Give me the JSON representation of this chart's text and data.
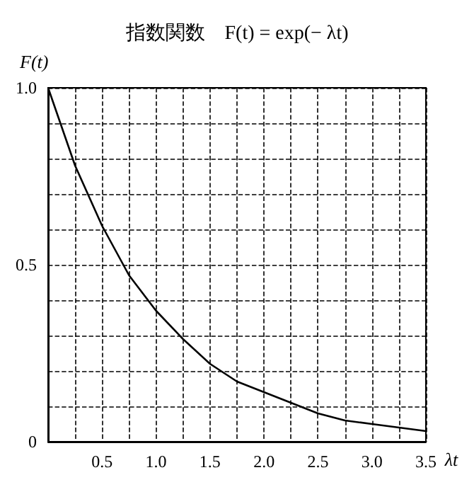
{
  "chart_data": {
    "type": "line",
    "title": "指数関数　F(t) = exp(− λt)",
    "xlabel": "λt",
    "ylabel": "F(t)",
    "x": [
      0,
      0.25,
      0.5,
      0.75,
      1,
      1.25,
      1.5,
      1.75,
      2,
      2.25,
      2.5,
      2.75,
      3,
      3.25,
      3.5
    ],
    "values": [
      1,
      0.78,
      0.61,
      0.47,
      0.37,
      0.29,
      0.22,
      0.17,
      0.14,
      0.11,
      0.08,
      0.06,
      0.05,
      0.04,
      0.03
    ],
    "color": "#000000",
    "marker": "none",
    "line_style": "solid",
    "grid": true,
    "xlim": [
      0,
      3.5
    ],
    "ylim": [
      0,
      1
    ],
    "xticks": [
      {
        "value": 0,
        "label": null
      },
      {
        "value": 0.25,
        "label": null
      },
      0.5,
      {
        "value": 0.75,
        "label": null
      },
      {
        "value": 1,
        "label": "1.0"
      },
      {
        "value": 1.25,
        "label": null
      },
      1.5,
      {
        "value": 1.75,
        "label": null
      },
      {
        "value": 2,
        "label": "2.0"
      },
      {
        "value": 2.25,
        "label": null
      },
      2.5,
      {
        "value": 2.75,
        "label": null
      },
      {
        "value": 3,
        "label": "3.0"
      },
      {
        "value": 3.25,
        "label": null
      },
      3.5
    ],
    "yticks": [
      0,
      {
        "value": 0.1,
        "label": null
      },
      {
        "value": 0.2,
        "label": null
      },
      {
        "value": 0.3,
        "label": null
      },
      {
        "value": 0.4,
        "label": null
      },
      0.5,
      {
        "value": 0.6,
        "label": null
      },
      {
        "value": 0.7,
        "label": null
      },
      {
        "value": 0.8,
        "label": null
      },
      {
        "value": 0.9,
        "label": null
      },
      {
        "value": 1,
        "label": "1.0"
      }
    ]
  }
}
